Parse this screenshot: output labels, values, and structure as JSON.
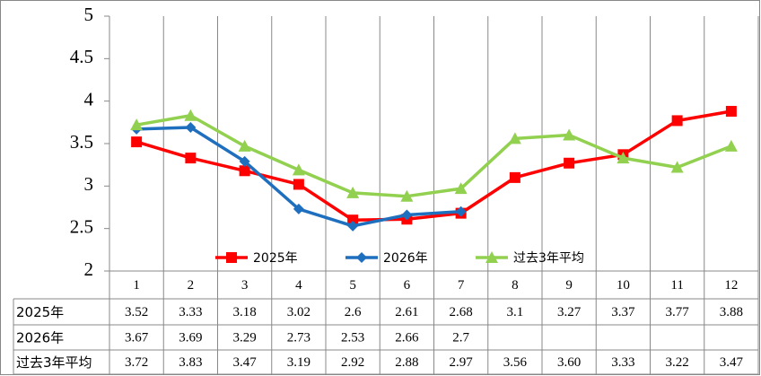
{
  "chart_data": {
    "type": "line",
    "categories": [
      "1",
      "2",
      "3",
      "4",
      "5",
      "6",
      "7",
      "8",
      "9",
      "10",
      "11",
      "12"
    ],
    "ylim": [
      2,
      5
    ],
    "yticks": [
      2,
      2.5,
      3,
      3.5,
      4,
      4.5,
      5
    ],
    "series": [
      {
        "name": "2025年",
        "color": "#ff0000",
        "marker": "square",
        "values": [
          3.52,
          3.33,
          3.18,
          3.02,
          2.6,
          2.61,
          2.68,
          3.1,
          3.27,
          3.37,
          3.77,
          3.88
        ]
      },
      {
        "name": "2026年",
        "color": "#1f6fbf",
        "marker": "diamond",
        "values": [
          3.67,
          3.69,
          3.29,
          2.73,
          2.53,
          2.66,
          2.7,
          null,
          null,
          null,
          null,
          null
        ]
      },
      {
        "name": "过去3年平均",
        "color": "#92d050",
        "marker": "triangle",
        "values": [
          3.72,
          3.83,
          3.47,
          3.19,
          2.92,
          2.88,
          2.97,
          3.56,
          3.6,
          3.33,
          3.22,
          3.47
        ],
        "value_labels": [
          "3.72",
          "3.83",
          "3.47",
          "3.19",
          "2.92",
          "2.88",
          "2.97",
          "3.56",
          "3.60",
          "3.33",
          "3.22",
          "3.47"
        ]
      }
    ]
  }
}
